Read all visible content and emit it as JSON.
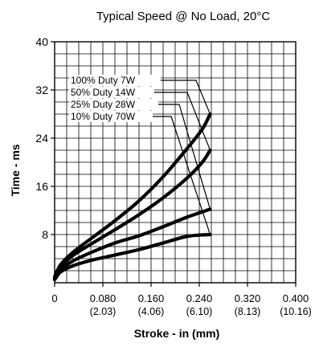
{
  "chart_data": {
    "type": "line",
    "title": "Typical Speed @ No Load, 20°C",
    "xlabel": "Stroke - in (mm)",
    "ylabel": "Time - ms",
    "xlim": [
      0,
      0.4
    ],
    "ylim": [
      0,
      40
    ],
    "grid": true,
    "x_ticks": [
      {
        "value": 0,
        "label": "0",
        "sublabel": ""
      },
      {
        "value": 0.08,
        "label": "0.080",
        "sublabel": "(2.03)"
      },
      {
        "value": 0.16,
        "label": "0.160",
        "sublabel": "(4.06)"
      },
      {
        "value": 0.24,
        "label": "0.240",
        "sublabel": "(6.10)"
      },
      {
        "value": 0.32,
        "label": "0.320",
        "sublabel": "(8.13)"
      },
      {
        "value": 0.4,
        "label": "0.400",
        "sublabel": "(10.16)"
      }
    ],
    "y_ticks": [
      {
        "value": 8,
        "label": "8"
      },
      {
        "value": 16,
        "label": "16"
      },
      {
        "value": 24,
        "label": "24"
      },
      {
        "value": 32,
        "label": "32"
      },
      {
        "value": 40,
        "label": "40"
      }
    ],
    "series": [
      {
        "name": "100% Duty 7W",
        "x": [
          0,
          0.01,
          0.03,
          0.06,
          0.1,
          0.14,
          0.18,
          0.22,
          0.245,
          0.258
        ],
        "y": [
          1.0,
          3.0,
          5.0,
          7.3,
          10.3,
          13.6,
          17.6,
          22.3,
          25.5,
          28.0
        ]
      },
      {
        "name": "50% Duty 14W",
        "x": [
          0,
          0.01,
          0.03,
          0.06,
          0.1,
          0.14,
          0.18,
          0.22,
          0.245,
          0.258
        ],
        "y": [
          0.8,
          2.6,
          4.5,
          6.4,
          8.8,
          11.3,
          14.1,
          17.4,
          20.0,
          22.0
        ]
      },
      {
        "name": "25% Duty 28W",
        "x": [
          0,
          0.01,
          0.03,
          0.06,
          0.1,
          0.14,
          0.18,
          0.22,
          0.258
        ],
        "y": [
          0.6,
          2.2,
          3.6,
          5.0,
          6.6,
          7.8,
          9.3,
          10.9,
          12.2
        ]
      },
      {
        "name": "10% Duty 70W",
        "x": [
          0,
          0.01,
          0.03,
          0.06,
          0.1,
          0.14,
          0.18,
          0.22,
          0.258
        ],
        "y": [
          0.5,
          1.8,
          2.8,
          3.7,
          4.6,
          5.5,
          6.6,
          7.7,
          8.0
        ]
      }
    ],
    "legend_placement": "upper-left, with leader lines to each curve end",
    "line_color": "#000000"
  }
}
